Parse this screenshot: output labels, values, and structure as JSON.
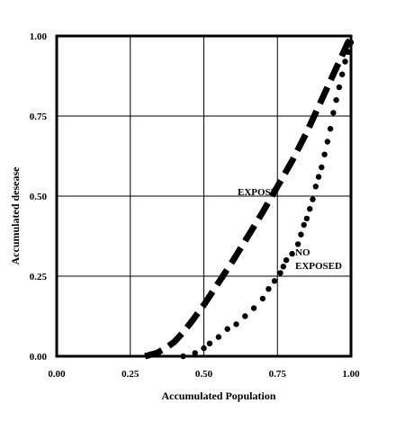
{
  "chart_data": {
    "type": "line",
    "title": "",
    "xlabel": "Accumulated Population",
    "ylabel": "Accumulated desease",
    "xlim": [
      0,
      1
    ],
    "ylim": [
      0,
      1
    ],
    "grid": true,
    "x_ticks": [
      "0.00",
      "0.25",
      "0.50",
      "0.75",
      "1.00"
    ],
    "y_ticks": [
      "0.00",
      "0.25",
      "0.50",
      "0.75",
      "1.00"
    ],
    "annotations": {
      "exposed": "EXPOSE",
      "no_line1": "NO",
      "no_line2": "EXPOSED"
    },
    "series": [
      {
        "style": "dashed",
        "color": "#000000",
        "x": [
          0.3,
          0.34,
          0.37,
          0.4,
          0.43,
          0.46,
          0.5,
          0.55,
          0.6,
          0.65,
          0.7,
          0.75,
          0.8,
          0.85,
          0.9,
          0.94,
          0.97,
          0.99,
          1.0
        ],
        "y": [
          0.0,
          0.01,
          0.025,
          0.045,
          0.075,
          0.11,
          0.16,
          0.23,
          0.3,
          0.375,
          0.45,
          0.53,
          0.61,
          0.7,
          0.8,
          0.88,
          0.94,
          0.98,
          0.99
        ]
      },
      {
        "style": "dotted",
        "color": "#000000",
        "x": [
          0.43,
          0.47,
          0.5,
          0.52,
          0.55,
          0.58,
          0.61,
          0.64,
          0.67,
          0.7,
          0.72,
          0.74,
          0.76,
          0.77,
          0.78,
          0.8,
          0.82,
          0.83,
          0.84,
          0.85,
          0.86,
          0.87,
          0.88,
          0.89,
          0.9,
          0.91,
          0.92,
          0.93,
          0.94,
          0.95,
          0.96,
          0.97,
          0.98,
          0.99,
          1.0
        ],
        "y": [
          0.0,
          0.01,
          0.025,
          0.04,
          0.06,
          0.085,
          0.1,
          0.125,
          0.15,
          0.18,
          0.21,
          0.235,
          0.26,
          0.28,
          0.3,
          0.32,
          0.35,
          0.38,
          0.41,
          0.43,
          0.46,
          0.49,
          0.53,
          0.56,
          0.59,
          0.63,
          0.67,
          0.71,
          0.76,
          0.8,
          0.84,
          0.88,
          0.92,
          0.95,
          0.98
        ]
      }
    ]
  }
}
